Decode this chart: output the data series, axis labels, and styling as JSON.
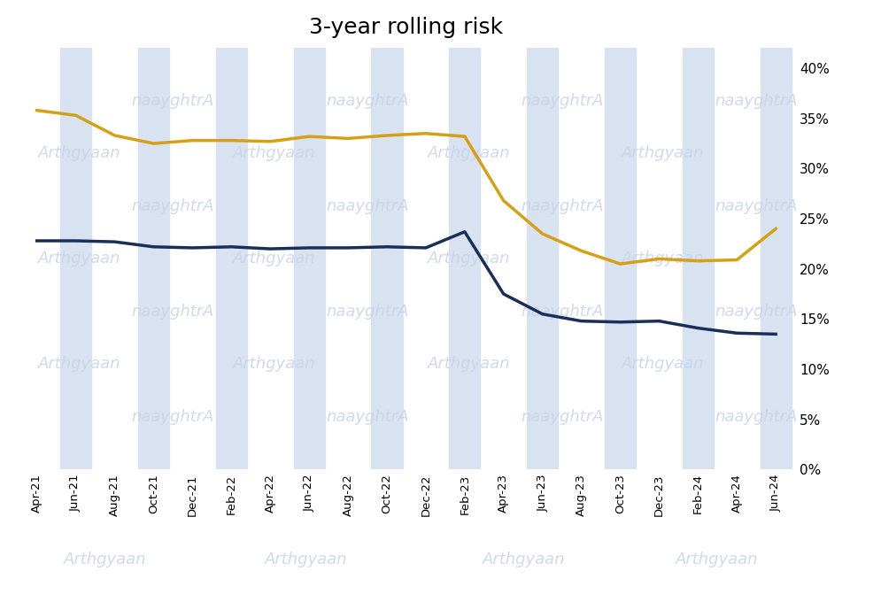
{
  "title": "3-year rolling risk",
  "title_fontsize": 18,
  "background_color": "#ffffff",
  "plot_bg_color": "#ffffff",
  "ylim": [
    0,
    0.42
  ],
  "yticks": [
    0.0,
    0.05,
    0.1,
    0.15,
    0.2,
    0.25,
    0.3,
    0.35,
    0.4
  ],
  "x_labels": [
    "Apr-21",
    "Jun-21",
    "Aug-21",
    "Oct-21",
    "Dec-21",
    "Feb-22",
    "Apr-22",
    "Jun-22",
    "Aug-22",
    "Oct-22",
    "Dec-22",
    "Feb-23",
    "Apr-23",
    "Jun-23",
    "Aug-23",
    "Oct-23",
    "Dec-23",
    "Feb-24",
    "Apr-24",
    "Jun-24"
  ],
  "nifty50_color": "#1a2e5a",
  "defence_color": "#d4a017",
  "line_width": 2.5,
  "watermark_text": "Arthgyaan",
  "watermark_reversed": "naayghtrA",
  "watermark_color": "#c8d4e8",
  "stripe_color": "#d8e2f0",
  "legend_fontsize": 11,
  "nifty50_values": [
    0.228,
    0.228,
    0.227,
    0.222,
    0.221,
    0.222,
    0.22,
    0.221,
    0.221,
    0.222,
    0.221,
    0.237,
    0.175,
    0.155,
    0.148,
    0.147,
    0.148,
    0.141,
    0.136,
    0.135
  ],
  "defence_values": [
    0.358,
    0.353,
    0.333,
    0.325,
    0.328,
    0.328,
    0.327,
    0.332,
    0.33,
    0.333,
    0.335,
    0.332,
    0.268,
    0.235,
    0.218,
    0.205,
    0.21,
    0.208,
    0.209,
    0.24
  ],
  "stripe_x_indices": [
    1,
    3,
    5,
    7,
    9,
    11,
    13,
    15,
    17,
    19
  ],
  "fig_width": 9.87,
  "fig_height": 6.8,
  "dpi": 100
}
